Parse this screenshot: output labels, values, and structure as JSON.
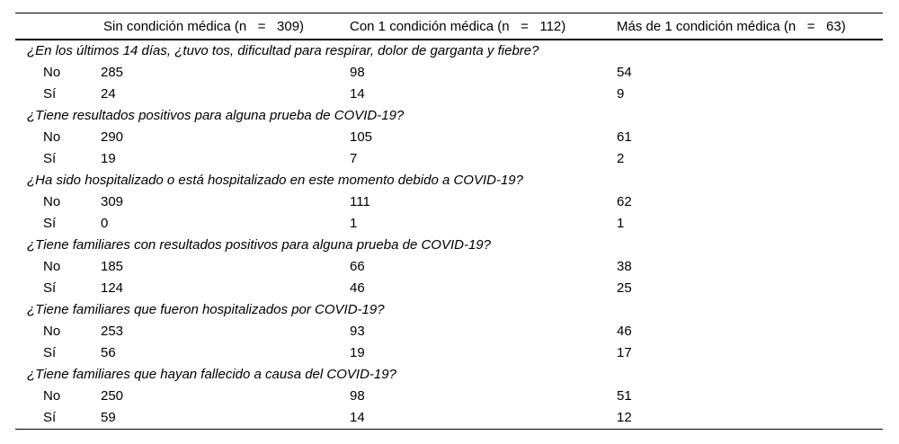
{
  "page": {
    "background_color": "#ffffff",
    "text_color": "#000000",
    "rule_color": "#000000"
  },
  "table": {
    "columns": [
      {
        "label": "Sin condición médica (n   =   309)"
      },
      {
        "label": "Con 1 condición médica (n   =   112)"
      },
      {
        "label": "Más de 1 condición médica (n   =   63)"
      }
    ],
    "groups": [
      {
        "question": "¿En los últimos 14 días, ¿tuvo tos, dificultad para respirar, dolor de garganta y fiebre?",
        "rows": [
          {
            "label": "No",
            "values": [
              "285",
              "98",
              "54"
            ]
          },
          {
            "label": "Sí",
            "values": [
              "24",
              "14",
              "9"
            ]
          }
        ]
      },
      {
        "question": "¿Tiene resultados positivos para alguna prueba de COVID-19?",
        "rows": [
          {
            "label": "No",
            "values": [
              "290",
              "105",
              "61"
            ]
          },
          {
            "label": "Sí",
            "values": [
              "19",
              "7",
              "2"
            ]
          }
        ]
      },
      {
        "question": "¿Ha sido hospitalizado o está hospitalizado en este momento debido a COVID-19?",
        "rows": [
          {
            "label": "No",
            "values": [
              "309",
              "111",
              "62"
            ]
          },
          {
            "label": "Sí",
            "values": [
              "0",
              "1",
              "1"
            ]
          }
        ]
      },
      {
        "question": "¿Tiene familiares con resultados positivos para alguna prueba de COVID-19?",
        "rows": [
          {
            "label": "No",
            "values": [
              "185",
              "66",
              "38"
            ]
          },
          {
            "label": "Sí",
            "values": [
              "124",
              "46",
              "25"
            ]
          }
        ]
      },
      {
        "question": "¿Tiene familiares que fueron hospitalizados por COVID-19?",
        "rows": [
          {
            "label": "No",
            "values": [
              "253",
              "93",
              "46"
            ]
          },
          {
            "label": "Sí",
            "values": [
              "56",
              "19",
              "17"
            ]
          }
        ]
      },
      {
        "question": "¿Tiene familiares que hayan fallecido a causa del COVID-19?",
        "rows": [
          {
            "label": "No",
            "values": [
              "250",
              "98",
              "51"
            ]
          },
          {
            "label": "Sí",
            "values": [
              "59",
              "14",
              "12"
            ]
          }
        ]
      }
    ]
  }
}
